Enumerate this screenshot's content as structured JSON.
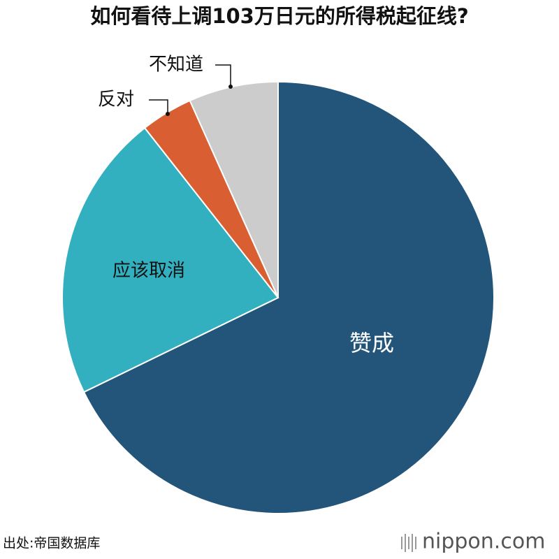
{
  "chart_data": {
    "type": "pie",
    "title": "如何看待上调103万日元的所得税起征线?",
    "categories": [
      "赞成",
      "应该取消",
      "反对",
      "不知道"
    ],
    "values": [
      67.8,
      21.6,
      3.9,
      6.7
    ],
    "colors": [
      "#23557a",
      "#33b0bf",
      "#d95f33",
      "#cccccc"
    ],
    "source": "出处:帝国数据库",
    "logo": "nippon.com"
  }
}
